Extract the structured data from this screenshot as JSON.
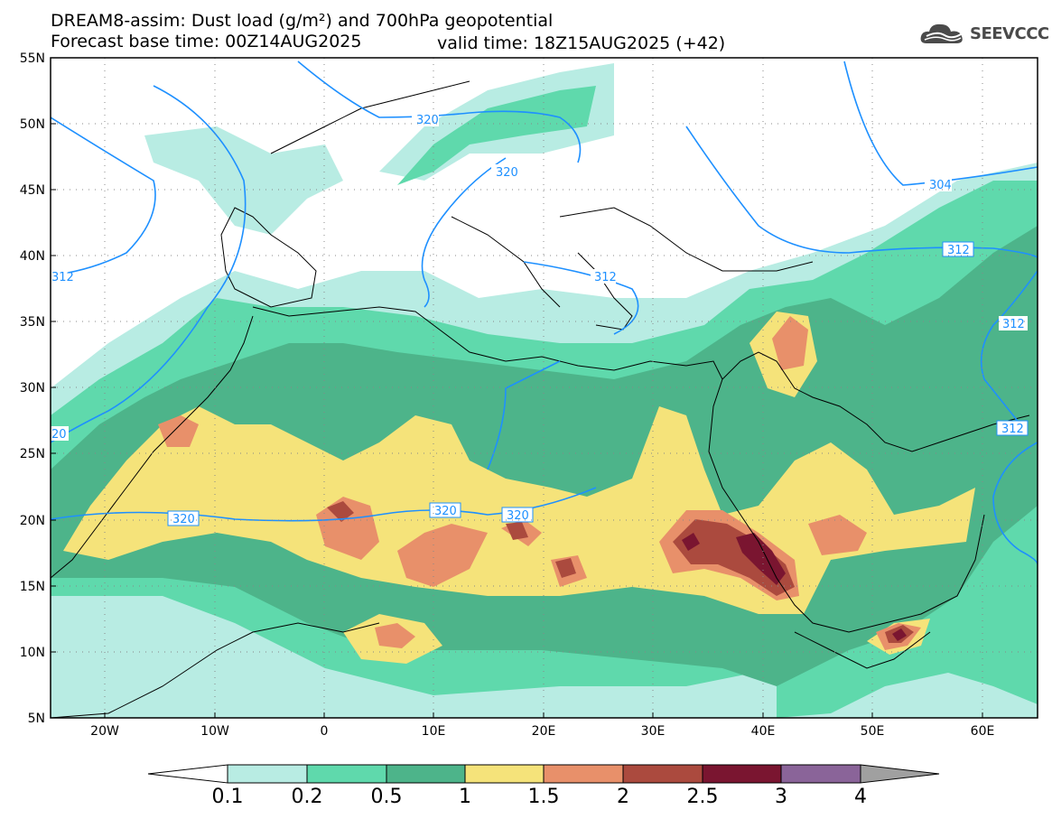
{
  "header": {
    "title_line1": "DREAM8-assim: Dust load (g/m²) and 700hPa geopotential",
    "title_line2": "Forecast base time: 00Z14AUG2025",
    "valid_time": "valid time: 18Z15AUG2025 (+42)",
    "logo_text": "SEEVCCC",
    "logo_icon": "cloud-icon"
  },
  "map": {
    "lat_labels": [
      "55N",
      "50N",
      "45N",
      "40N",
      "35N",
      "30N",
      "25N",
      "20N",
      "15N",
      "10N",
      "5N"
    ],
    "lon_labels": [
      "20W",
      "10W",
      "0",
      "10E",
      "20E",
      "30E",
      "40E",
      "50E",
      "60E"
    ],
    "contour_labels": [
      "320",
      "320",
      "320",
      "320",
      "320",
      "304",
      "312",
      "312",
      "312",
      "312",
      "20",
      "312"
    ]
  },
  "colorbar": {
    "ticks": [
      "0.1",
      "0.2",
      "0.5",
      "1",
      "1.5",
      "2",
      "2.5",
      "3",
      "4"
    ],
    "colors": [
      "#ffffff",
      "#b8ece3",
      "#5fd9ac",
      "#4db48a",
      "#f5e37a",
      "#e8906a",
      "#ab4a3e",
      "#7a1530",
      "#8a6499",
      "#a0a0a0"
    ]
  }
}
